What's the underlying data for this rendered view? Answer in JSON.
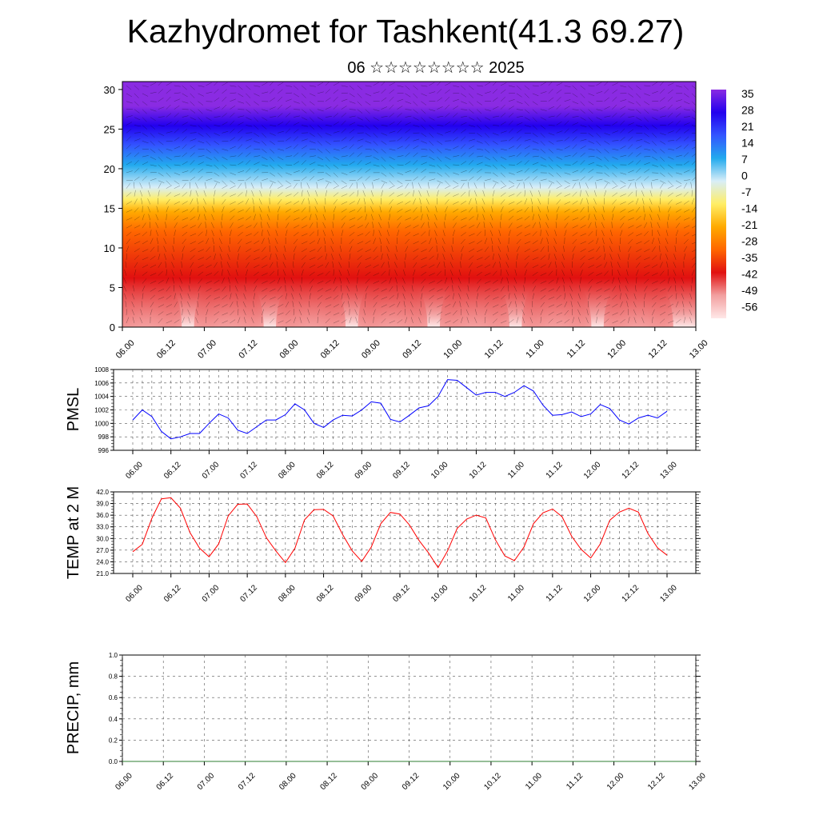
{
  "title": "Kazhydromet for Tashkent(41.3 69.27)",
  "subtitle": "06 ☆☆☆☆☆☆☆☆ 2025",
  "chart_data": [
    {
      "type": "heatmap",
      "panel": "cross-section",
      "x_tick_labels": [
        "06.00",
        "06.12",
        "07.00",
        "07.12",
        "08.00",
        "08.12",
        "09.00",
        "09.12",
        "10.00",
        "10.12",
        "11.00",
        "11.12",
        "12.00",
        "12.12",
        "13.00"
      ],
      "y_ticks": [
        0,
        5,
        10,
        15,
        20,
        25,
        30
      ],
      "ylim": [
        0,
        31
      ],
      "colorbar_labels": [
        "35",
        "28",
        "21",
        "14",
        "7",
        "0",
        "-7",
        "-14",
        "-21",
        "-28",
        "-35",
        "-42",
        "-49",
        "-56"
      ],
      "colors": [
        "#ffe8e8",
        "#f2a0a0",
        "#e11010",
        "#ff6600",
        "#ffaa00",
        "#ffee66",
        "#d8eef8",
        "#22aaee",
        "#3355ff",
        "#2200ee",
        "#8a2be2"
      ]
    },
    {
      "type": "line",
      "ylabel": "PMSL",
      "ylim": [
        996,
        1008
      ],
      "y_tick_labels": [
        "996",
        "998",
        "1000",
        "1002",
        "1004",
        "1006",
        "1008"
      ],
      "x_tick_labels": [
        "06.00",
        "06.12",
        "07.00",
        "07.12",
        "08.00",
        "08.12",
        "09.00",
        "09.12",
        "10.00",
        "10.12",
        "11.00",
        "11.12",
        "12.00",
        "12.12",
        "13.00"
      ],
      "series": [
        {
          "color": "#0000ff",
          "values": [
            1000.5,
            1002.0,
            1001.0,
            998.8,
            997.7,
            998.0,
            998.5,
            998.5,
            1000.0,
            1001.4,
            1000.8,
            999.0,
            998.5,
            999.5,
            1000.5,
            1000.5,
            1001.3,
            1002.9,
            1002.0,
            1000.0,
            999.4,
            1000.5,
            1001.2,
            1001.1,
            1002.0,
            1003.2,
            1003.0,
            1000.6,
            1000.2,
            1001.2,
            1002.3,
            1002.6,
            1004.0,
            1006.5,
            1006.4,
            1005.3,
            1004.2,
            1004.6,
            1004.6,
            1004.0,
            1004.6,
            1005.6,
            1004.8,
            1002.7,
            1001.2,
            1001.3,
            1001.7,
            1001.0,
            1001.4,
            1002.8,
            1002.2,
            1000.5,
            999.9,
            1000.8,
            1001.2,
            1000.8,
            1001.8
          ]
        }
      ]
    },
    {
      "type": "line",
      "ylabel": "TEMP at 2 M",
      "ylim": [
        21,
        42
      ],
      "y_tick_labels": [
        "21.0",
        "24.0",
        "27.0",
        "30.0",
        "33.0",
        "36.0",
        "39.0",
        "42.0"
      ],
      "x_tick_labels": [
        "06.00",
        "06.12",
        "07.00",
        "07.12",
        "08.00",
        "08.12",
        "09.00",
        "09.12",
        "10.00",
        "10.12",
        "11.00",
        "11.12",
        "12.00",
        "12.12",
        "13.00"
      ],
      "series": [
        {
          "color": "#ff0000",
          "values": [
            26.6,
            28.5,
            35.2,
            40.2,
            40.5,
            37.8,
            31.5,
            27.5,
            25.3,
            28.6,
            35.8,
            38.8,
            38.9,
            35.6,
            30.2,
            26.8,
            23.8,
            27.5,
            34.8,
            37.4,
            37.5,
            35.8,
            31.0,
            26.8,
            24.1,
            27.8,
            33.8,
            36.7,
            36.3,
            33.5,
            29.5,
            26.3,
            22.5,
            26.8,
            32.6,
            35.0,
            36.0,
            35.3,
            29.7,
            25.5,
            24.3,
            27.8,
            33.8,
            36.6,
            37.6,
            35.6,
            30.6,
            27.2,
            25.0,
            28.6,
            34.7,
            36.8,
            37.8,
            36.8,
            31.3,
            27.6,
            25.7
          ]
        }
      ]
    },
    {
      "type": "line",
      "ylabel": "PRECIP, mm",
      "ylim": [
        0,
        1
      ],
      "y_tick_labels": [
        "0.0",
        "0.2",
        "0.4",
        "0.6",
        "0.8",
        "1.0"
      ],
      "x_tick_labels": [
        "06.00",
        "06.12",
        "07.00",
        "07.12",
        "08.00",
        "08.12",
        "09.00",
        "09.12",
        "10.00",
        "10.12",
        "11.00",
        "11.12",
        "12.00",
        "12.12",
        "13.00"
      ],
      "series": [
        {
          "color": "#2e7d32",
          "values": [
            0,
            0,
            0,
            0,
            0,
            0,
            0,
            0,
            0,
            0,
            0,
            0,
            0,
            0,
            0
          ]
        }
      ]
    }
  ]
}
